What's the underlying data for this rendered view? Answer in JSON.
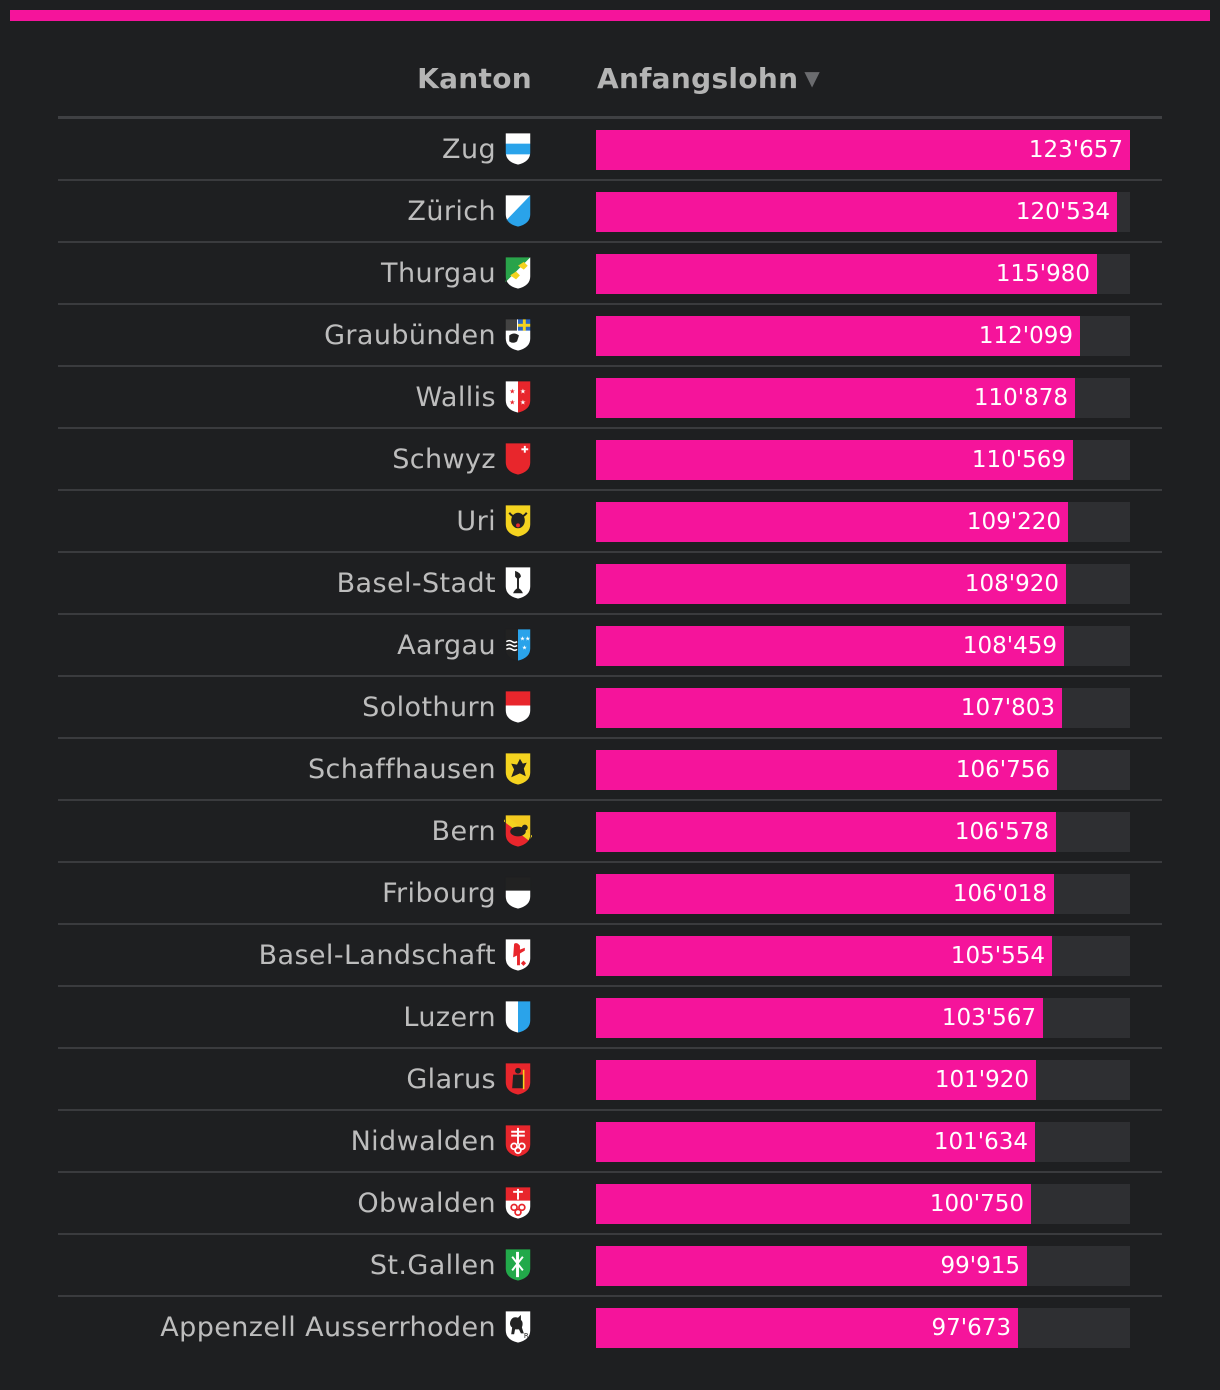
{
  "accent_color": "#f5149b",
  "header": {
    "kanton_label": "Kanton",
    "lohn_label": "Anfangslohn",
    "sort_icon": "▼"
  },
  "chart_data": {
    "type": "bar",
    "orientation": "horizontal",
    "xlim": [
      0,
      123657
    ],
    "categories": [
      "Zug",
      "Zürich",
      "Thurgau",
      "Graubünden",
      "Wallis",
      "Schwyz",
      "Uri",
      "Basel-Stadt",
      "Aargau",
      "Solothurn",
      "Schaffhausen",
      "Bern",
      "Fribourg",
      "Basel-Landschaft",
      "Luzern",
      "Glarus",
      "Nidwalden",
      "Obwalden",
      "St.Gallen",
      "Appenzell Ausserrhoden"
    ],
    "values": [
      123657,
      120534,
      115980,
      112099,
      110878,
      110569,
      109220,
      108920,
      108459,
      107803,
      106756,
      106578,
      106018,
      105554,
      103567,
      101920,
      101634,
      100750,
      99915,
      97673
    ],
    "rows": [
      {
        "kanton": "Zug",
        "value": 123657,
        "label": "123'657",
        "crest": "zug-crest-icon"
      },
      {
        "kanton": "Zürich",
        "value": 120534,
        "label": "120'534",
        "crest": "zurich-crest-icon"
      },
      {
        "kanton": "Thurgau",
        "value": 115980,
        "label": "115'980",
        "crest": "thurgau-crest-icon"
      },
      {
        "kanton": "Graubünden",
        "value": 112099,
        "label": "112'099",
        "crest": "graubunden-crest-icon"
      },
      {
        "kanton": "Wallis",
        "value": 110878,
        "label": "110'878",
        "crest": "wallis-crest-icon"
      },
      {
        "kanton": "Schwyz",
        "value": 110569,
        "label": "110'569",
        "crest": "schwyz-crest-icon"
      },
      {
        "kanton": "Uri",
        "value": 109220,
        "label": "109'220",
        "crest": "uri-crest-icon"
      },
      {
        "kanton": "Basel-Stadt",
        "value": 108920,
        "label": "108'920",
        "crest": "basel-stadt-crest-icon"
      },
      {
        "kanton": "Aargau",
        "value": 108459,
        "label": "108'459",
        "crest": "aargau-crest-icon"
      },
      {
        "kanton": "Solothurn",
        "value": 107803,
        "label": "107'803",
        "crest": "solothurn-crest-icon"
      },
      {
        "kanton": "Schaffhausen",
        "value": 106756,
        "label": "106'756",
        "crest": "schaffhausen-crest-icon"
      },
      {
        "kanton": "Bern",
        "value": 106578,
        "label": "106'578",
        "crest": "bern-crest-icon"
      },
      {
        "kanton": "Fribourg",
        "value": 106018,
        "label": "106'018",
        "crest": "fribourg-crest-icon"
      },
      {
        "kanton": "Basel-Landschaft",
        "value": 105554,
        "label": "105'554",
        "crest": "basel-landschaft-crest-icon"
      },
      {
        "kanton": "Luzern",
        "value": 103567,
        "label": "103'567",
        "crest": "luzern-crest-icon"
      },
      {
        "kanton": "Glarus",
        "value": 101920,
        "label": "101'920",
        "crest": "glarus-crest-icon"
      },
      {
        "kanton": "Nidwalden",
        "value": 101634,
        "label": "101'634",
        "crest": "nidwalden-crest-icon"
      },
      {
        "kanton": "Obwalden",
        "value": 100750,
        "label": "100'750",
        "crest": "obwalden-crest-icon"
      },
      {
        "kanton": "St.Gallen",
        "value": 99915,
        "label": "99'915",
        "crest": "st-gallen-crest-icon"
      },
      {
        "kanton": "Appenzell Ausserrhoden",
        "value": 97673,
        "label": "97'673",
        "crest": "appenzell-ausserrhoden-crest-icon"
      }
    ]
  }
}
